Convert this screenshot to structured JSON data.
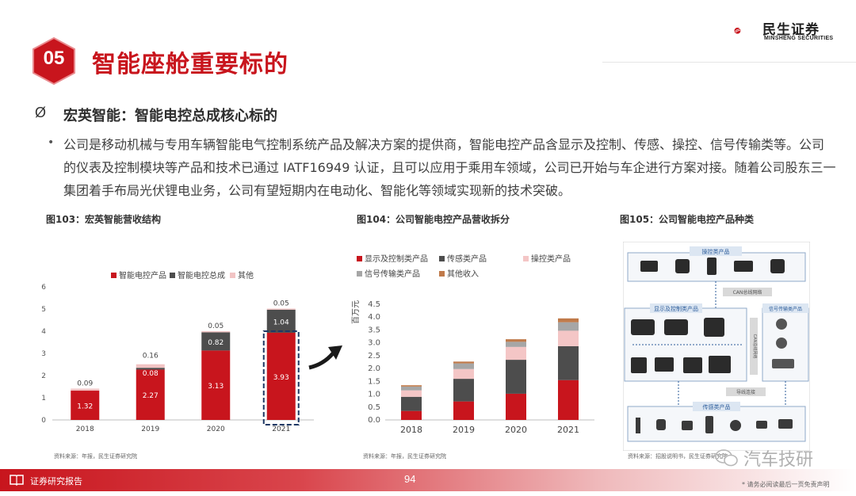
{
  "header": {
    "section_number": "05",
    "title": "智能座舱重要标的",
    "logo_cn": "民生证券",
    "logo_en": "MINSHENG SECURITIES",
    "brand_color": "#c8151d"
  },
  "bullets": {
    "mark": "Ø",
    "title": "宏英智能：智能电控总成核心标的",
    "dot": "•",
    "paragraph": "公司是移动机械与专用车辆智能电气控制系统产品及解决方案的提供商，智能电控产品含显示及控制、传感、操控、信号传输类等。公司的仪表及控制模块等产品和技术已通过 IATF16949 认证，且可以应用于乘用车领域，公司已开始与车企进行方案对接。随着公司股东三一集团着手布局光伏锂电业务，公司有望短期内在电动化、智能化等领域实现新的技术突破。"
  },
  "figures": {
    "fig103": {
      "caption": "图103：宏英智能营收结构",
      "source": "资料来源：年报，民生证券研究院"
    },
    "fig104": {
      "caption": "图104：公司智能电控产品营收拆分",
      "source": "资料来源：年报，民生证券研究院"
    },
    "fig105": {
      "caption": "图105：公司智能电控产品种类",
      "source": "资料来源：招股说明书，民生证券研究院"
    }
  },
  "chart_data": [
    {
      "type": "bar",
      "stacked": true,
      "categories": [
        "2018",
        "2019",
        "2020",
        "2021"
      ],
      "series": [
        {
          "name": "智能电控产品",
          "values": [
            1.32,
            2.27,
            3.13,
            3.93
          ],
          "color": "#c8151d"
        },
        {
          "name": "智能电控总成",
          "values": [
            0,
            0.08,
            0.82,
            1.04
          ],
          "color": "#4d4d4d"
        },
        {
          "name": "其他",
          "values": [
            0.09,
            0.16,
            0.05,
            0.05
          ],
          "color": "#f2c4c4"
        }
      ],
      "data_labels": {
        "2018": [
          "1.32",
          "",
          "0.09"
        ],
        "2019": [
          "2.27",
          "0.08",
          "0.16"
        ],
        "2020": [
          "3.13",
          "0.82",
          "0.05"
        ],
        "2021": [
          "3.93",
          "1.04",
          "0.05"
        ]
      },
      "y_ticks": [
        "0",
        "1",
        "2",
        "3",
        "4",
        "5",
        "6"
      ],
      "ylim": [
        0,
        6
      ],
      "legend_position": "top",
      "highlight_category": "2021"
    },
    {
      "type": "bar",
      "stacked": true,
      "categories": [
        "2018",
        "2019",
        "2020",
        "2021"
      ],
      "series": [
        {
          "name": "显示及控制类产品",
          "values": [
            0.35,
            0.72,
            1.02,
            1.55
          ],
          "color": "#c8151d"
        },
        {
          "name": "传感类产品",
          "values": [
            0.55,
            0.88,
            1.32,
            1.32
          ],
          "color": "#4d4d4d"
        },
        {
          "name": "操控类产品",
          "values": [
            0.25,
            0.38,
            0.5,
            0.6
          ],
          "color": "#f4c6c6"
        },
        {
          "name": "信号传输类产品",
          "values": [
            0.15,
            0.22,
            0.2,
            0.33
          ],
          "color": "#a6a6a6"
        },
        {
          "name": "其他收入",
          "values": [
            0.05,
            0.07,
            0.1,
            0.15
          ],
          "color": "#c07a4a"
        }
      ],
      "ylabel": "百万元",
      "y_ticks": [
        "0.0",
        "0.5",
        "1.0",
        "1.5",
        "2.0",
        "2.5",
        "3.0",
        "3.5",
        "4.0",
        "4.5"
      ],
      "ylim": [
        0,
        4.5
      ],
      "legend_position": "top"
    }
  ],
  "diagram": {
    "top_group": "操控类产品",
    "bus": "CAN总线网络",
    "left_group": "显示及控制类产品",
    "right_group": "信号传输类产品",
    "side_label": "CAN总线网络",
    "lower_bus": "导线连接",
    "bottom_group": "传感类产品"
  },
  "footer": {
    "label": "证券研究报告",
    "page_number": "94",
    "disclaimer": "* 请务必阅读最后一页免责声明",
    "watermark": "汽车技研"
  }
}
